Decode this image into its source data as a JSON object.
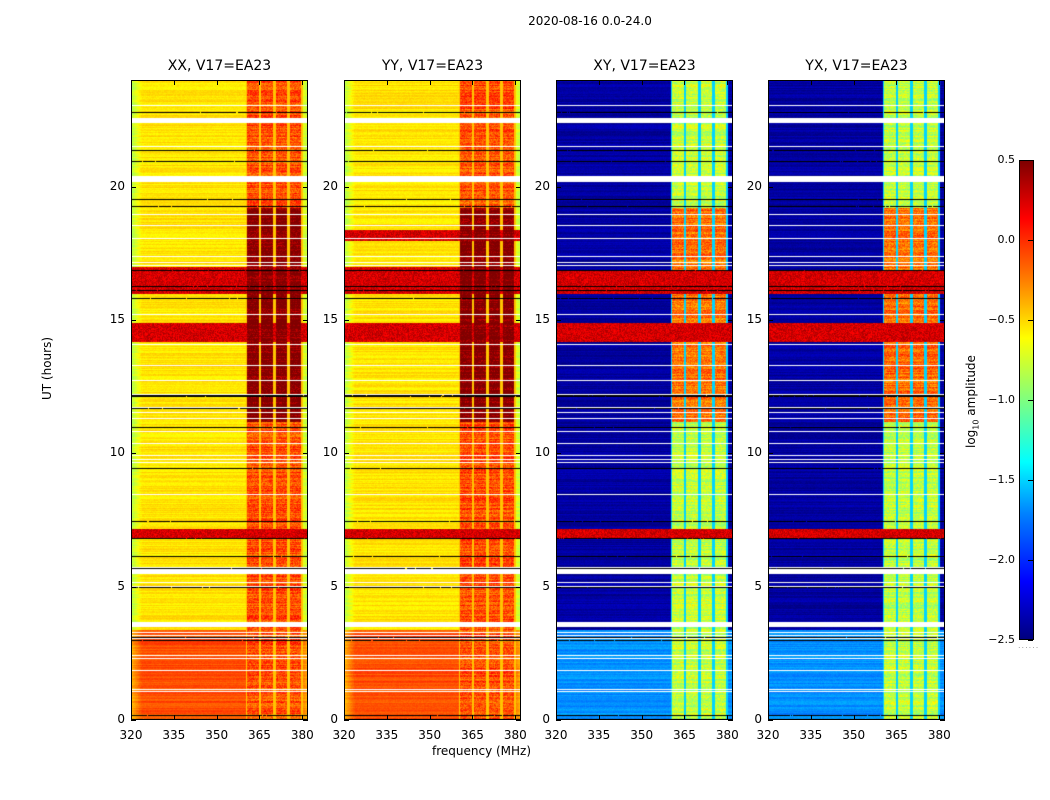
{
  "chart_data": {
    "type": "heatmap",
    "title": "2020-08-16 0.0-24.0",
    "xlabel": "frequency (MHz)",
    "ylabel": "UT (hours)",
    "xlim": [
      320,
      382
    ],
    "ylim": [
      0,
      24
    ],
    "x_ticks": [
      "320",
      "335",
      "350",
      "365",
      "380"
    ],
    "x_tick_values": [
      320,
      335,
      350,
      365,
      380
    ],
    "y_ticks": [
      "0",
      "5",
      "10",
      "15",
      "20"
    ],
    "y_tick_values": [
      0,
      5,
      10,
      15,
      20
    ],
    "colorbar": {
      "label_prefix": "log",
      "label_sub": "10",
      "label_suffix": " amplitude",
      "range": [
        -2.5,
        0.5
      ],
      "ticks": [
        "0.5",
        "0.0",
        "−0.5",
        "−1.0",
        "−1.5",
        "−2.0",
        "−2.5"
      ],
      "tick_values": [
        0.5,
        0.0,
        -0.5,
        -1.0,
        -1.5,
        -2.0,
        -2.5
      ],
      "colormap": "jet"
    },
    "rfi_band_mhz": [
      360,
      380
    ],
    "rfi_channels_mhz": [
      [
        360.5,
        364.5
      ],
      [
        365.5,
        369.5
      ],
      [
        370.5,
        374.5
      ],
      [
        375.5,
        379.5
      ]
    ],
    "flagged_hours": [
      [
        22.4,
        22.6
      ],
      [
        20.2,
        20.4
      ],
      [
        5.5,
        5.7
      ],
      [
        3.5,
        3.7
      ]
    ],
    "panels": [
      {
        "title": "XX, V17=EA23",
        "kind": "parallel",
        "background_log_amp": -0.55,
        "rfi_log_amp": -0.1,
        "bright_hours": [
          [
            16.0,
            17.0
          ],
          [
            14.2,
            14.9
          ],
          [
            6.8,
            7.2
          ]
        ],
        "enhanced_hours": [
          [
            0.0,
            3.4
          ]
        ],
        "rfi_strong_hours": [
          [
            11.2,
            19.2
          ]
        ]
      },
      {
        "title": "YY, V17=EA23",
        "kind": "parallel",
        "background_log_amp": -0.55,
        "rfi_log_amp": -0.1,
        "bright_hours": [
          [
            18.0,
            18.4
          ],
          [
            16.0,
            17.0
          ],
          [
            14.2,
            14.9
          ],
          [
            6.8,
            7.2
          ]
        ],
        "enhanced_hours": [
          [
            0.0,
            3.4
          ]
        ],
        "rfi_strong_hours": [
          [
            11.2,
            19.2
          ]
        ]
      },
      {
        "title": "XY, V17=EA23",
        "kind": "cross",
        "background_log_amp": -2.4,
        "rfi_log_amp": -0.8,
        "bright_hours": [
          [
            16.0,
            16.9
          ],
          [
            14.2,
            14.9
          ],
          [
            6.8,
            7.2
          ]
        ],
        "enhanced_hours": [
          [
            0.0,
            3.4
          ]
        ],
        "rfi_strong_hours": [
          [
            11.2,
            19.2
          ]
        ]
      },
      {
        "title": "YX, V17=EA23",
        "kind": "cross",
        "background_log_amp": -2.4,
        "rfi_log_amp": -0.8,
        "bright_hours": [
          [
            16.0,
            16.9
          ],
          [
            14.2,
            14.9
          ],
          [
            6.8,
            7.2
          ]
        ],
        "enhanced_hours": [
          [
            0.0,
            3.4
          ]
        ],
        "rfi_strong_hours": [
          [
            11.2,
            19.2
          ]
        ]
      }
    ]
  }
}
